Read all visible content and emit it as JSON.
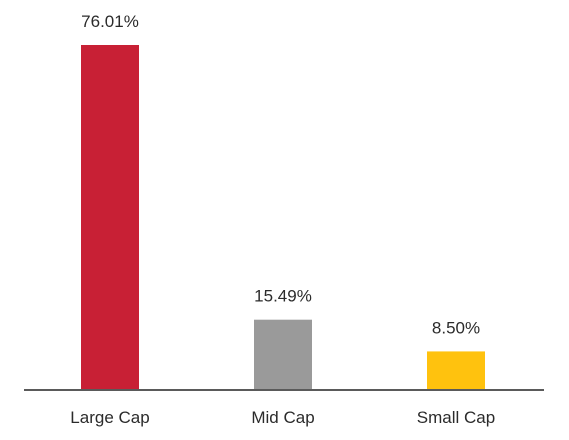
{
  "chart_data": {
    "type": "bar",
    "categories": [
      "Large Cap",
      "Mid Cap",
      "Small Cap"
    ],
    "values": [
      76.01,
      15.49,
      8.5
    ],
    "value_labels": [
      "76.01%",
      "15.49%",
      "8.50%"
    ],
    "colors": [
      "#c82035",
      "#9a9a9a",
      "#ffc20e"
    ],
    "axis_color": "#5a5a5a",
    "ylim": [
      0,
      76.01
    ],
    "grid": false,
    "legend": "none"
  }
}
